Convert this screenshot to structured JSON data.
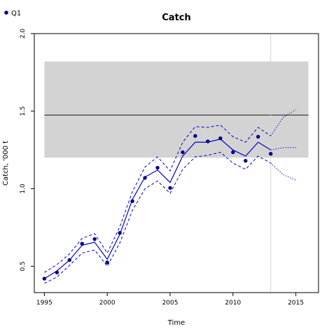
{
  "chart_data": {
    "type": "line",
    "title": "Catch",
    "xlabel": "Time",
    "ylabel": "Catch, '000 t",
    "xlim": [
      1994.2,
      2016.8
    ],
    "ylim": [
      0.33,
      2.0
    ],
    "x_ticks": [
      1995,
      2000,
      2005,
      2010,
      2015
    ],
    "y_ticks": [
      0.5,
      1.0,
      1.5,
      2.0
    ],
    "x_tick_labels": [
      "1995",
      "2000",
      "2005",
      "2010",
      "2015"
    ],
    "y_tick_labels": [
      "0.5",
      "1.0",
      "1.5",
      "2.0"
    ],
    "legend": {
      "position": "top-left",
      "entries": [
        {
          "label": "Q1",
          "color": "#00008B"
        }
      ]
    },
    "reference_band": {
      "x": [
        1995,
        2016
      ],
      "y": [
        1.2,
        1.82
      ],
      "color": "#D3D3D3"
    },
    "reference_line": {
      "y": 1.475,
      "x": [
        1995,
        2016
      ]
    },
    "vertical_marker": {
      "x": 2013,
      "color": "#D3D3D3"
    },
    "observed": {
      "name": "Q1",
      "x": [
        1995,
        1996,
        1997,
        1998,
        1999,
        2000,
        2001,
        2002,
        2003,
        2004,
        2005,
        2006,
        2007,
        2008,
        2009,
        2010,
        2011,
        2012,
        2013
      ],
      "y": [
        0.42,
        0.46,
        0.54,
        0.645,
        0.675,
        0.525,
        0.715,
        0.92,
        1.07,
        1.135,
        1.005,
        1.235,
        1.34,
        1.305,
        1.325,
        1.235,
        1.18,
        1.335,
        1.225
      ]
    },
    "fitted": {
      "x": [
        1995,
        1996,
        1997,
        1998,
        1999,
        2000,
        2001,
        2002,
        2003,
        2004,
        2005,
        2006,
        2007,
        2008,
        2009,
        2010,
        2011,
        2012,
        2013
      ],
      "mid": [
        0.42,
        0.47,
        0.54,
        0.635,
        0.655,
        0.545,
        0.705,
        0.93,
        1.075,
        1.12,
        1.04,
        1.21,
        1.3,
        1.3,
        1.32,
        1.25,
        1.21,
        1.3,
        1.25
      ],
      "upper": [
        0.46,
        0.51,
        0.58,
        0.68,
        0.71,
        0.585,
        0.755,
        0.98,
        1.14,
        1.205,
        1.115,
        1.3,
        1.4,
        1.395,
        1.41,
        1.335,
        1.3,
        1.395,
        1.34
      ],
      "lower": [
        0.39,
        0.43,
        0.505,
        0.585,
        0.605,
        0.5,
        0.65,
        0.86,
        1.0,
        1.05,
        0.97,
        1.125,
        1.205,
        1.215,
        1.235,
        1.165,
        1.125,
        1.21,
        1.165
      ]
    },
    "projection": {
      "x": [
        2013,
        2014,
        2015
      ],
      "mid": [
        1.25,
        1.265,
        1.265
      ],
      "upper": [
        1.34,
        1.46,
        1.51
      ],
      "lower": [
        1.165,
        1.09,
        1.055
      ]
    },
    "series_color": "#0000CD"
  }
}
